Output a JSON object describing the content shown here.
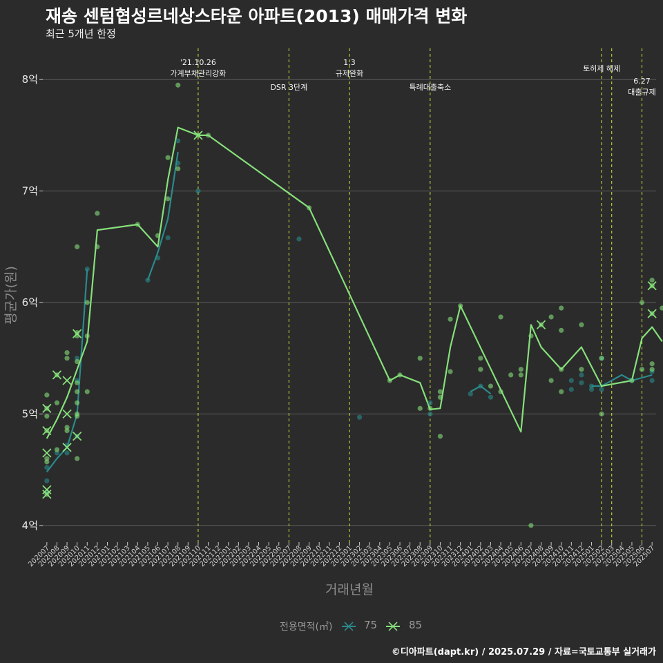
{
  "header": {
    "title": "재송 센텀협성르네상스타운 아파트(2013) 매매가격 변화",
    "subtitle": "최근 5개년 한정"
  },
  "legend": {
    "title": "전용면적(㎡)",
    "items": [
      {
        "label": "75",
        "color": "#2a8a8c"
      },
      {
        "label": "85",
        "color": "#86e07a"
      }
    ]
  },
  "caption": "©디아파트(dapt.kr) / 2025.07.29 / 자료=국토교통부 실거래가",
  "chart_data": {
    "type": "line",
    "xlabel": "거래년월",
    "ylabel": "평균가(원)",
    "ylim": [
      3.85,
      8.28
    ],
    "categories": [
      "202007",
      "202008",
      "202009",
      "202010",
      "202011",
      "202012",
      "202101",
      "202102",
      "202103",
      "202104",
      "202105",
      "202106",
      "202107",
      "202108",
      "202109",
      "202110",
      "202111",
      "202112",
      "202201",
      "202202",
      "202203",
      "202204",
      "202205",
      "202206",
      "202207",
      "202208",
      "202209",
      "202210",
      "202211",
      "202212",
      "202301",
      "202302",
      "202303",
      "202304",
      "202305",
      "202306",
      "202307",
      "202308",
      "202309",
      "202310",
      "202311",
      "202312",
      "202401",
      "202402",
      "202403",
      "202404",
      "202405",
      "202406",
      "202407",
      "202408",
      "202409",
      "202410",
      "202411",
      "202412",
      "202501",
      "202502",
      "202503",
      "202504",
      "202505",
      "202506",
      "202507"
    ],
    "y_ticks": [
      {
        "value": 4,
        "label": "4억"
      },
      {
        "value": 5,
        "label": "5억"
      },
      {
        "value": 6,
        "label": "6억"
      },
      {
        "value": 7,
        "label": "7억"
      },
      {
        "value": 8,
        "label": "8억"
      }
    ],
    "series": [
      {
        "name": "75",
        "color": "#2a8a8c",
        "line": [
          [
            0,
            4.48
          ],
          [
            1,
            4.6
          ],
          [
            2,
            4.7
          ],
          [
            3,
            5.0
          ],
          [
            4,
            6.3
          ],
          [
            10,
            6.2
          ],
          [
            11,
            6.45
          ],
          [
            12,
            6.75
          ],
          [
            13,
            7.35
          ],
          [
            42,
            5.2
          ],
          [
            43,
            5.25
          ],
          [
            44,
            5.18
          ],
          [
            54,
            5.25
          ],
          [
            55,
            5.25
          ],
          [
            57,
            5.35
          ],
          [
            58,
            5.3
          ],
          [
            60,
            5.35
          ]
        ],
        "points": [
          [
            0,
            4.52
          ],
          [
            0,
            4.4
          ],
          [
            0,
            4.3
          ],
          [
            1,
            4.65
          ],
          [
            2,
            4.72
          ],
          [
            2,
            4.65
          ],
          [
            3,
            4.8
          ],
          [
            3,
            5.3
          ],
          [
            3,
            5.5
          ],
          [
            4,
            6.3
          ],
          [
            10,
            6.2
          ],
          [
            11,
            6.4
          ],
          [
            12,
            6.58
          ],
          [
            13,
            7.45
          ],
          [
            13,
            7.25
          ],
          [
            15,
            7.0
          ],
          [
            25,
            6.57
          ],
          [
            31,
            4.97
          ],
          [
            38,
            5.1
          ],
          [
            38,
            5.0
          ],
          [
            42,
            5.18
          ],
          [
            43,
            5.25
          ],
          [
            44,
            5.15
          ],
          [
            52,
            5.22
          ],
          [
            52,
            5.3
          ],
          [
            53,
            5.35
          ],
          [
            53,
            5.28
          ],
          [
            54,
            5.22
          ],
          [
            54,
            5.25
          ],
          [
            55,
            5.22
          ],
          [
            55,
            5.5
          ],
          [
            58,
            5.3
          ],
          [
            60,
            5.3
          ],
          [
            60,
            5.38
          ]
        ]
      },
      {
        "name": "85",
        "color": "#86e07a",
        "line": [
          [
            0,
            4.78
          ],
          [
            1,
            4.95
          ],
          [
            2,
            5.15
          ],
          [
            3,
            5.4
          ],
          [
            4,
            5.65
          ],
          [
            5,
            6.65
          ],
          [
            9,
            6.7
          ],
          [
            11,
            6.5
          ],
          [
            12,
            7.1
          ],
          [
            13,
            7.57
          ],
          [
            15,
            7.5
          ],
          [
            16,
            7.5
          ],
          [
            26,
            6.85
          ],
          [
            34,
            5.3
          ],
          [
            35,
            5.35
          ],
          [
            37,
            5.28
          ],
          [
            38,
            5.04
          ],
          [
            39,
            5.05
          ],
          [
            40,
            5.6
          ],
          [
            41,
            5.97
          ],
          [
            47,
            4.84
          ],
          [
            48,
            5.8
          ],
          [
            49,
            5.6
          ],
          [
            51,
            5.4
          ],
          [
            53,
            5.6
          ],
          [
            55,
            5.25
          ],
          [
            58,
            5.3
          ],
          [
            59,
            5.68
          ],
          [
            60,
            5.78
          ],
          [
            61,
            5.65
          ]
        ],
        "points": [
          [
            0,
            4.85
          ],
          [
            0,
            5.05
          ],
          [
            0,
            5.17
          ],
          [
            0,
            4.98
          ],
          [
            0,
            4.6
          ],
          [
            0,
            4.57
          ],
          [
            0,
            4.28
          ],
          [
            1,
            4.68
          ],
          [
            1,
            5.1
          ],
          [
            1,
            5.35
          ],
          [
            2,
            4.85
          ],
          [
            2,
            4.88
          ],
          [
            2,
            5.5
          ],
          [
            2,
            5.55
          ],
          [
            3,
            4.6
          ],
          [
            3,
            4.98
          ],
          [
            3,
            5.0
          ],
          [
            3,
            5.1
          ],
          [
            3,
            5.2
          ],
          [
            3,
            5.28
          ],
          [
            3,
            5.47
          ],
          [
            3,
            5.7
          ],
          [
            3,
            5.73
          ],
          [
            3,
            6.5
          ],
          [
            4,
            5.2
          ],
          [
            4,
            5.7
          ],
          [
            4,
            6.0
          ],
          [
            5,
            6.5
          ],
          [
            5,
            6.8
          ],
          [
            9,
            6.7
          ],
          [
            11,
            6.6
          ],
          [
            12,
            6.93
          ],
          [
            12,
            7.3
          ],
          [
            13,
            7.2
          ],
          [
            13,
            7.95
          ],
          [
            15,
            7.5
          ],
          [
            16,
            7.5
          ],
          [
            26,
            6.85
          ],
          [
            34,
            5.3
          ],
          [
            35,
            5.35
          ],
          [
            37,
            5.05
          ],
          [
            37,
            5.5
          ],
          [
            38,
            5.05
          ],
          [
            39,
            5.2
          ],
          [
            39,
            5.15
          ],
          [
            39,
            4.8
          ],
          [
            40,
            5.85
          ],
          [
            40,
            5.38
          ],
          [
            41,
            5.97
          ],
          [
            43,
            5.5
          ],
          [
            43,
            5.4
          ],
          [
            44,
            5.25
          ],
          [
            45,
            5.87
          ],
          [
            45,
            5.2
          ],
          [
            46,
            5.35
          ],
          [
            47,
            5.35
          ],
          [
            47,
            5.4
          ],
          [
            48,
            5.7
          ],
          [
            48,
            4.0
          ],
          [
            49,
            5.8
          ],
          [
            50,
            5.87
          ],
          [
            50,
            5.3
          ],
          [
            51,
            5.95
          ],
          [
            51,
            5.75
          ],
          [
            51,
            5.4
          ],
          [
            51,
            5.2
          ],
          [
            53,
            5.8
          ],
          [
            53,
            5.4
          ],
          [
            55,
            5.5
          ],
          [
            55,
            5.0
          ],
          [
            58,
            5.3
          ],
          [
            59,
            6.0
          ],
          [
            59,
            5.4
          ],
          [
            60,
            6.2
          ],
          [
            60,
            6.15
          ],
          [
            60,
            5.9
          ],
          [
            60,
            5.45
          ],
          [
            60,
            5.4
          ],
          [
            61,
            5.95
          ]
        ],
        "x_markers": [
          [
            0,
            5.05
          ],
          [
            0,
            4.85
          ],
          [
            0,
            4.65
          ],
          [
            0,
            4.32
          ],
          [
            0,
            4.28
          ],
          [
            1,
            5.35
          ],
          [
            2,
            5.3
          ],
          [
            2,
            5.0
          ],
          [
            2,
            4.7
          ],
          [
            3,
            5.72
          ],
          [
            3,
            4.8
          ],
          [
            15,
            7.5
          ],
          [
            49,
            5.8
          ],
          [
            60,
            6.15
          ],
          [
            60,
            5.9
          ]
        ]
      }
    ],
    "annotations": [
      {
        "x": 15,
        "lines": [
          "'21.10.26",
          "가계부채관리강화"
        ],
        "position": "high"
      },
      {
        "x": 24,
        "lines": [
          "DSR 3단계"
        ],
        "position": "low"
      },
      {
        "x": 30,
        "lines": [
          "1.3",
          "규제완화"
        ],
        "position": "high"
      },
      {
        "x": 38,
        "lines": [
          "특례대출축소"
        ],
        "position": "low"
      },
      {
        "x": 55,
        "lines": [
          "토허제 해제"
        ],
        "position": "mid"
      },
      {
        "x": 56,
        "lines": [],
        "position": "mid"
      },
      {
        "x": 59,
        "lines": [
          "6.27",
          "대출규제"
        ],
        "position": "right"
      }
    ]
  }
}
